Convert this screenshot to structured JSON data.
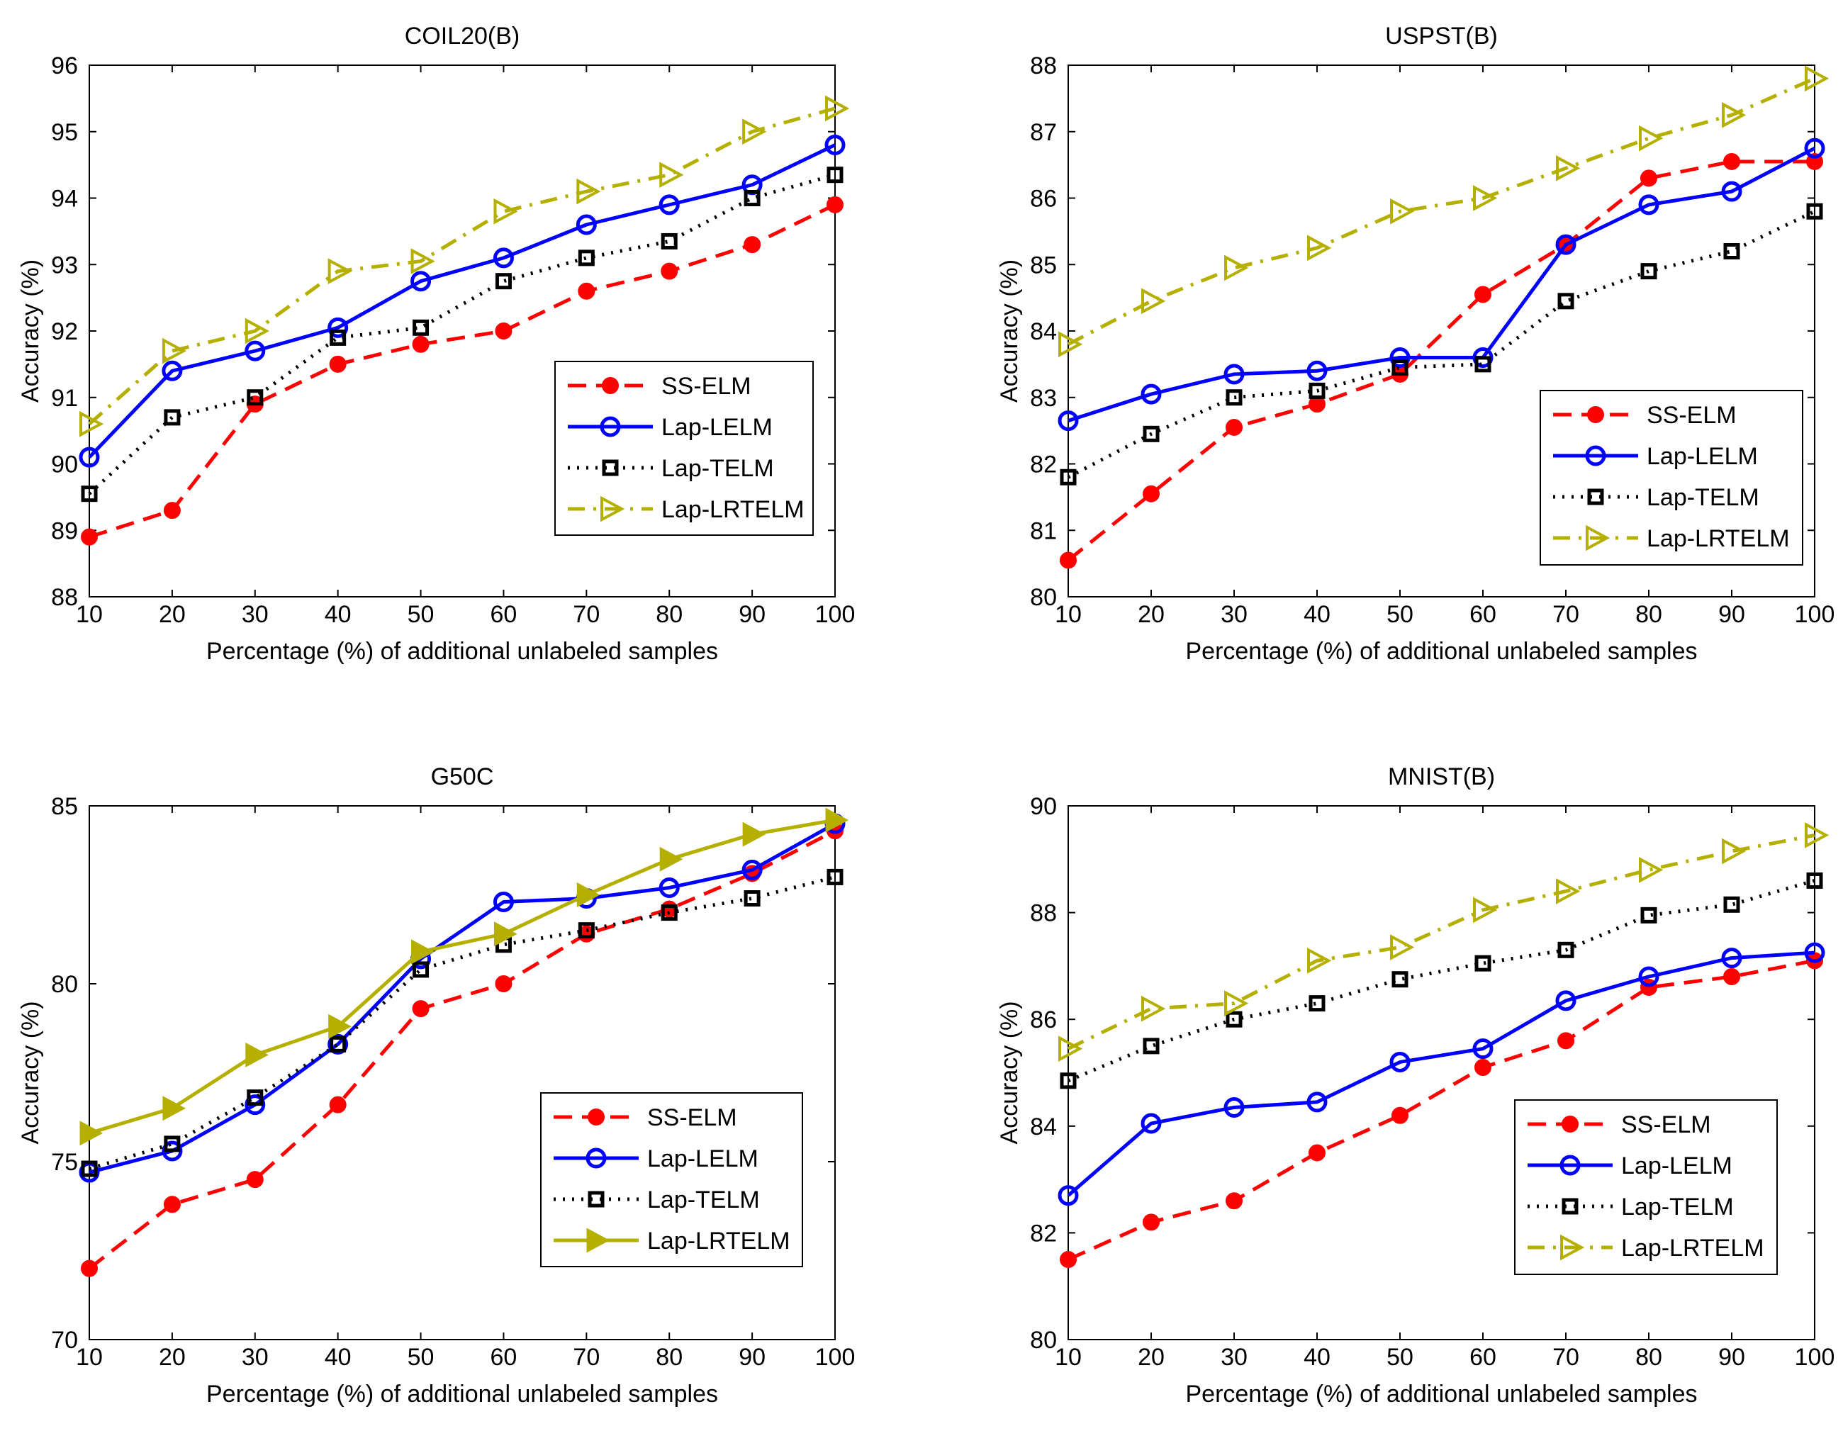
{
  "chart_data": [
    {
      "type": "line",
      "title": "COIL20(B)",
      "xlabel": "Percentage (%) of additional unlabeled samples",
      "ylabel": "Accuracy (%)",
      "xlim": [
        10,
        100
      ],
      "ylim": [
        88,
        96
      ],
      "xticks": [
        10,
        20,
        30,
        40,
        50,
        60,
        70,
        80,
        90,
        100
      ],
      "yticks": [
        88,
        89,
        90,
        91,
        92,
        93,
        94,
        95,
        96
      ],
      "legend_position": "center-right",
      "x": [
        10,
        20,
        30,
        40,
        50,
        60,
        70,
        80,
        90,
        100
      ],
      "series": [
        {
          "name": "SS-ELM",
          "values": [
            88.9,
            89.3,
            90.9,
            91.5,
            91.8,
            92.0,
            92.6,
            92.9,
            93.3,
            93.9
          ]
        },
        {
          "name": "Lap-LELM",
          "values": [
            90.1,
            91.4,
            91.7,
            92.05,
            92.75,
            93.1,
            93.6,
            93.9,
            94.2,
            94.8
          ]
        },
        {
          "name": "Lap-TELM",
          "values": [
            89.55,
            90.7,
            91.0,
            91.9,
            92.05,
            92.75,
            93.1,
            93.35,
            94.0,
            94.35
          ]
        },
        {
          "name": "Lap-LRTELM",
          "values": [
            90.6,
            91.7,
            92.0,
            92.9,
            93.05,
            93.8,
            94.1,
            94.35,
            95.0,
            95.35
          ]
        }
      ]
    },
    {
      "type": "line",
      "title": "USPST(B)",
      "xlabel": "Percentage (%) of additional unlabeled samples",
      "ylabel": "Accuracy (%)",
      "xlim": [
        10,
        100
      ],
      "ylim": [
        80,
        88
      ],
      "xticks": [
        10,
        20,
        30,
        40,
        50,
        60,
        70,
        80,
        90,
        100
      ],
      "yticks": [
        80,
        81,
        82,
        83,
        84,
        85,
        86,
        87,
        88
      ],
      "legend_position": "lower-right",
      "x": [
        10,
        20,
        30,
        40,
        50,
        60,
        70,
        80,
        90,
        100
      ],
      "series": [
        {
          "name": "SS-ELM",
          "values": [
            80.55,
            81.55,
            82.55,
            82.9,
            83.35,
            84.55,
            85.3,
            86.3,
            86.55,
            86.55
          ]
        },
        {
          "name": "Lap-LELM",
          "values": [
            82.65,
            83.05,
            83.35,
            83.4,
            83.6,
            83.6,
            85.3,
            85.9,
            86.1,
            86.75
          ]
        },
        {
          "name": "Lap-TELM",
          "values": [
            81.8,
            82.45,
            83.0,
            83.1,
            83.45,
            83.5,
            84.45,
            84.9,
            85.2,
            85.8
          ]
        },
        {
          "name": "Lap-LRTELM",
          "values": [
            83.8,
            84.45,
            84.95,
            85.25,
            85.8,
            86.0,
            86.45,
            86.9,
            87.25,
            87.8
          ]
        }
      ]
    },
    {
      "type": "line",
      "title": "G50C",
      "xlabel": "Percentage (%) of additional unlabeled samples",
      "ylabel": "Accuracy (%)",
      "xlim": [
        10,
        100
      ],
      "ylim": [
        70,
        85
      ],
      "xticks": [
        10,
        20,
        30,
        40,
        50,
        60,
        70,
        80,
        90,
        100
      ],
      "yticks": [
        70,
        75,
        80,
        85
      ],
      "legend_position": "lower-right",
      "x": [
        10,
        20,
        30,
        40,
        50,
        60,
        70,
        80,
        90,
        100
      ],
      "series": [
        {
          "name": "SS-ELM",
          "values": [
            72.0,
            73.8,
            74.5,
            76.6,
            79.3,
            80.0,
            81.4,
            82.1,
            83.1,
            84.3
          ]
        },
        {
          "name": "Lap-LELM",
          "values": [
            74.7,
            75.3,
            76.6,
            78.3,
            80.7,
            82.3,
            82.4,
            82.7,
            83.2,
            84.5
          ]
        },
        {
          "name": "Lap-TELM",
          "values": [
            74.8,
            75.5,
            76.8,
            78.3,
            80.4,
            81.1,
            81.5,
            82.0,
            82.4,
            83.0
          ]
        },
        {
          "name": "Lap-LRTELM",
          "values": [
            75.8,
            76.5,
            78.0,
            78.8,
            80.9,
            81.4,
            82.5,
            83.5,
            84.2,
            84.6
          ]
        }
      ]
    },
    {
      "type": "line",
      "title": "MNIST(B)",
      "xlabel": "Percentage (%) of additional unlabeled samples",
      "ylabel": "Accuracy (%)",
      "xlim": [
        10,
        100
      ],
      "ylim": [
        80,
        90
      ],
      "xticks": [
        10,
        20,
        30,
        40,
        50,
        60,
        70,
        80,
        90,
        100
      ],
      "yticks": [
        80,
        82,
        84,
        86,
        88,
        90
      ],
      "legend_position": "lower-right",
      "x": [
        10,
        20,
        30,
        40,
        50,
        60,
        70,
        80,
        90,
        100
      ],
      "series": [
        {
          "name": "SS-ELM",
          "values": [
            81.5,
            82.2,
            82.6,
            83.5,
            84.2,
            85.1,
            85.6,
            86.6,
            86.8,
            87.1
          ]
        },
        {
          "name": "Lap-LELM",
          "values": [
            82.7,
            84.05,
            84.35,
            84.45,
            85.2,
            85.45,
            86.35,
            86.8,
            87.15,
            87.25
          ]
        },
        {
          "name": "Lap-TELM",
          "values": [
            84.85,
            85.5,
            86.0,
            86.3,
            86.75,
            87.05,
            87.3,
            87.95,
            88.15,
            88.6
          ]
        },
        {
          "name": "Lap-LRTELM",
          "values": [
            85.45,
            86.2,
            86.3,
            87.1,
            87.35,
            88.05,
            88.4,
            88.8,
            89.15,
            89.45
          ]
        }
      ]
    }
  ],
  "styles": {
    "SS-ELM": {
      "color": "#ff0000",
      "dash": "dashed",
      "marker": "filled-circle"
    },
    "Lap-LELM": {
      "color": "#0000ff",
      "dash": "solid",
      "marker": "open-circle"
    },
    "Lap-TELM": {
      "color": "#000000",
      "dash": "dotted",
      "marker": "open-square"
    },
    "Lap-LRTELM": {
      "color": "#b5b000",
      "dash": "dash-dot",
      "marker": "open-triangle-right"
    },
    "Lap-LRTELM-g50c": {
      "color": "#b5b000",
      "dash": "solid",
      "marker": "filled-triangle-right"
    }
  }
}
